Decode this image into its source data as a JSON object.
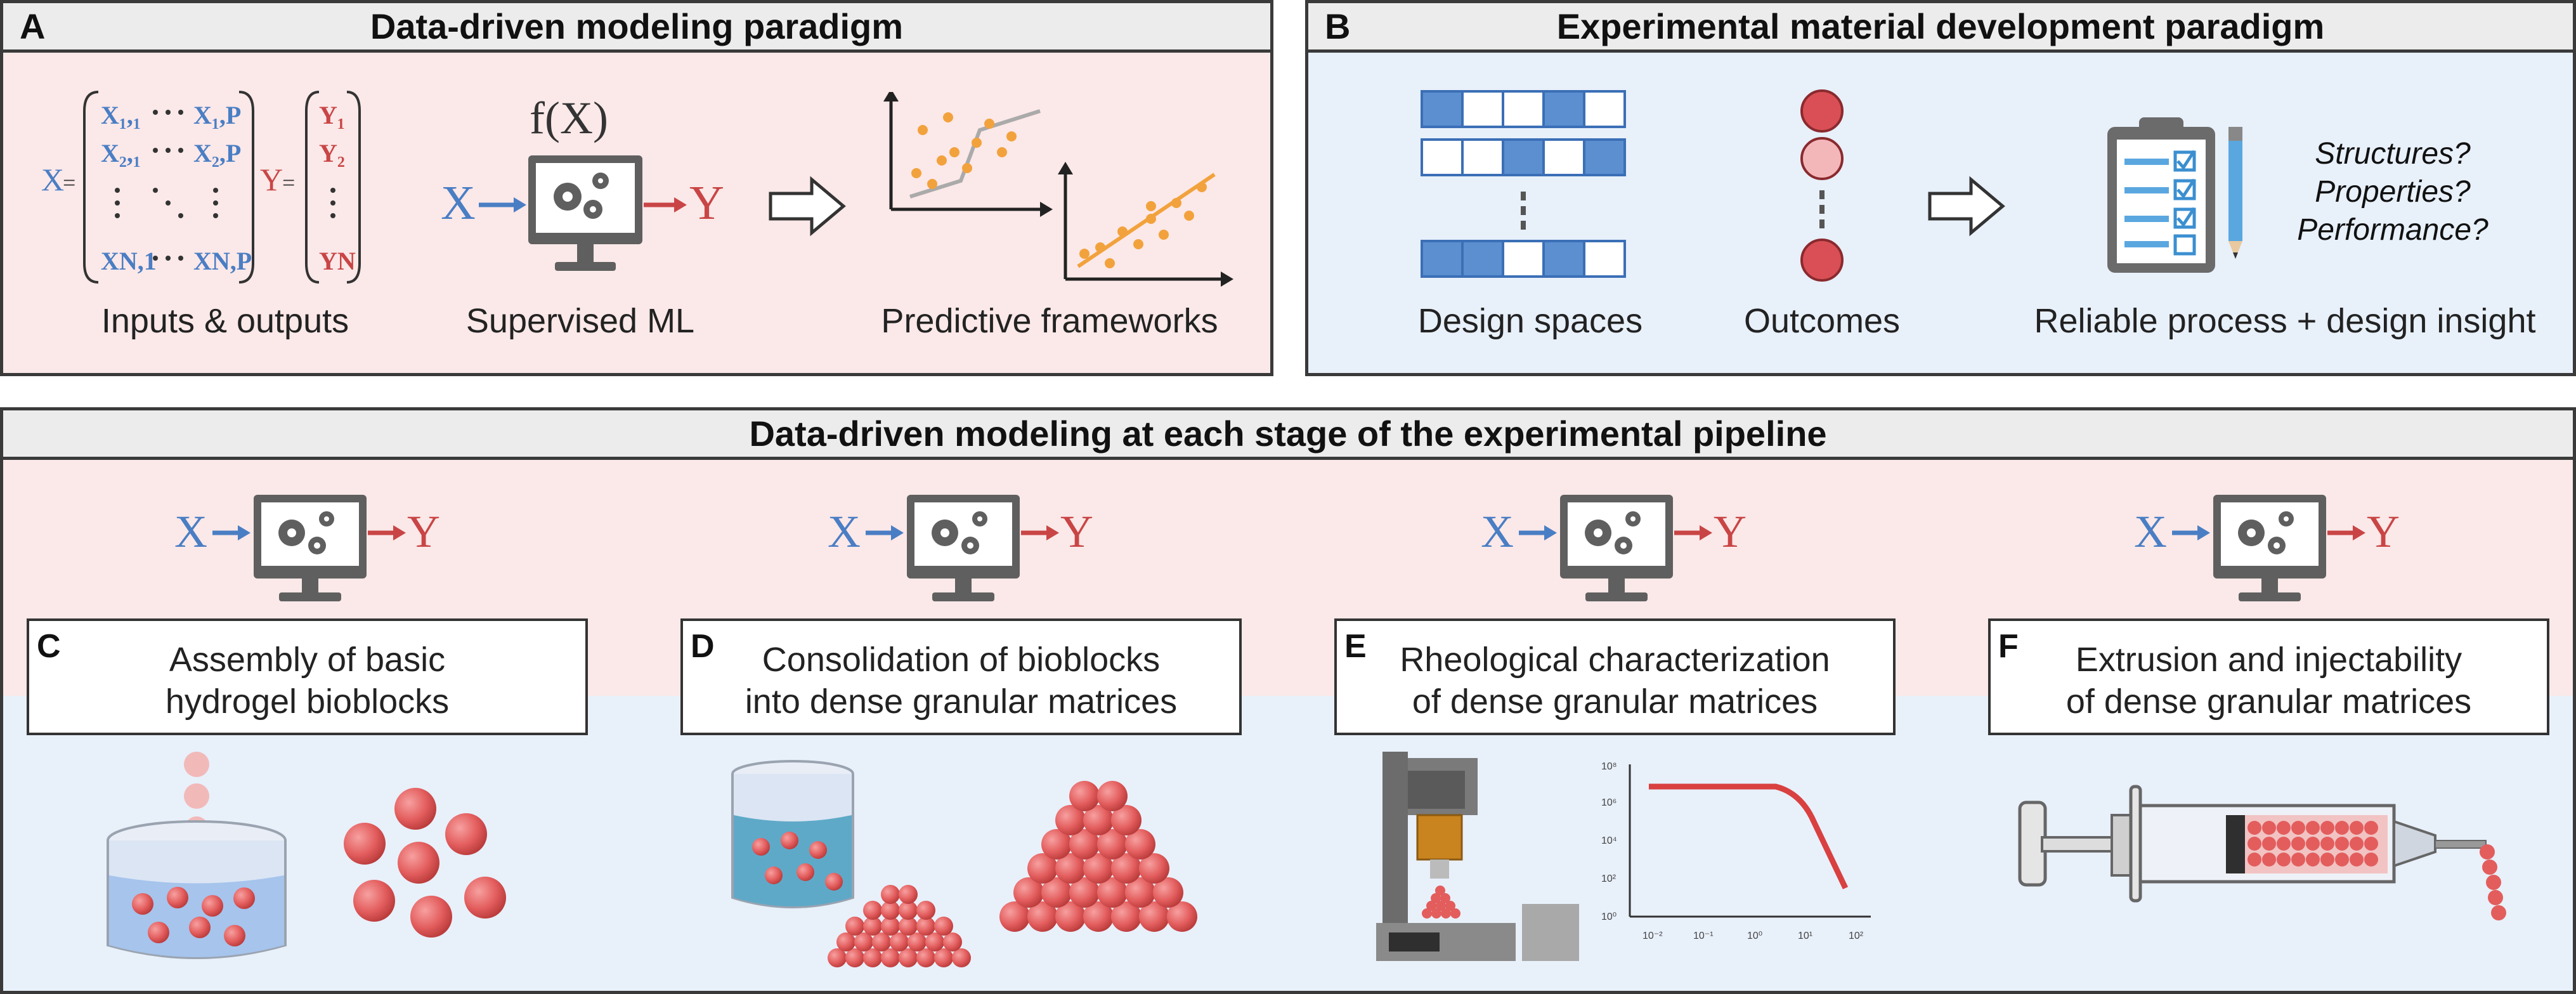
{
  "panel_a": {
    "letter": "A",
    "title": "Data-driven modeling paradigm",
    "captions": {
      "inputs": "Inputs & outputs",
      "ml": "Supervised ML",
      "predictive": "Predictive frameworks"
    },
    "matrix": {
      "x_label": "X",
      "y_label": "Y",
      "equals": "=",
      "x_cells": {
        "r1c1": "X₁,₁",
        "r1c2": "X₁,P",
        "r2c1": "X₂,₁",
        "r2c2": "X₂,P",
        "rNc1": "XN,1",
        "rNc2": "XN,P"
      },
      "y_cells": {
        "y1": "Y₁",
        "y2": "Y₂",
        "yN": "YN"
      }
    },
    "function_label": "f(X)"
  },
  "panel_b": {
    "letter": "B",
    "title": "Experimental material development paradigm",
    "captions": {
      "design": "Design spaces",
      "outcomes": "Outcomes",
      "insight": "Reliable process + design insight"
    },
    "questions": [
      "Structures?",
      "Properties?",
      "Performance?"
    ]
  },
  "pipeline": {
    "title": "Data-driven modeling at each stage of the experimental pipeline",
    "x_label": "X",
    "y_label": "Y",
    "stages": [
      {
        "letter": "C",
        "title_line1": "Assembly of basic",
        "title_line2": "hydrogel bioblocks"
      },
      {
        "letter": "D",
        "title_line1": "Consolidation of bioblocks",
        "title_line2": "into dense granular matrices"
      },
      {
        "letter": "E",
        "title_line1": "Rheological characterization",
        "title_line2": "of dense granular matrices"
      },
      {
        "letter": "F",
        "title_line1": "Extrusion and injectability",
        "title_line2": "of dense granular matrices"
      }
    ],
    "rheology_ticks": {
      "x": [
        "10⁻²",
        "10⁻¹",
        "10⁰",
        "10¹",
        "10²"
      ],
      "y": [
        "10⁸",
        "10⁶",
        "10⁴",
        "10²",
        "10⁰"
      ]
    }
  },
  "colors": {
    "pink_bg": "#fbe8e8",
    "blue_bg": "#e8f0fa",
    "x_blue": "#4a7ec4",
    "y_red": "#c94545",
    "sphere_red": "#e35d5d",
    "monitor_gray": "#5f5f5f"
  }
}
